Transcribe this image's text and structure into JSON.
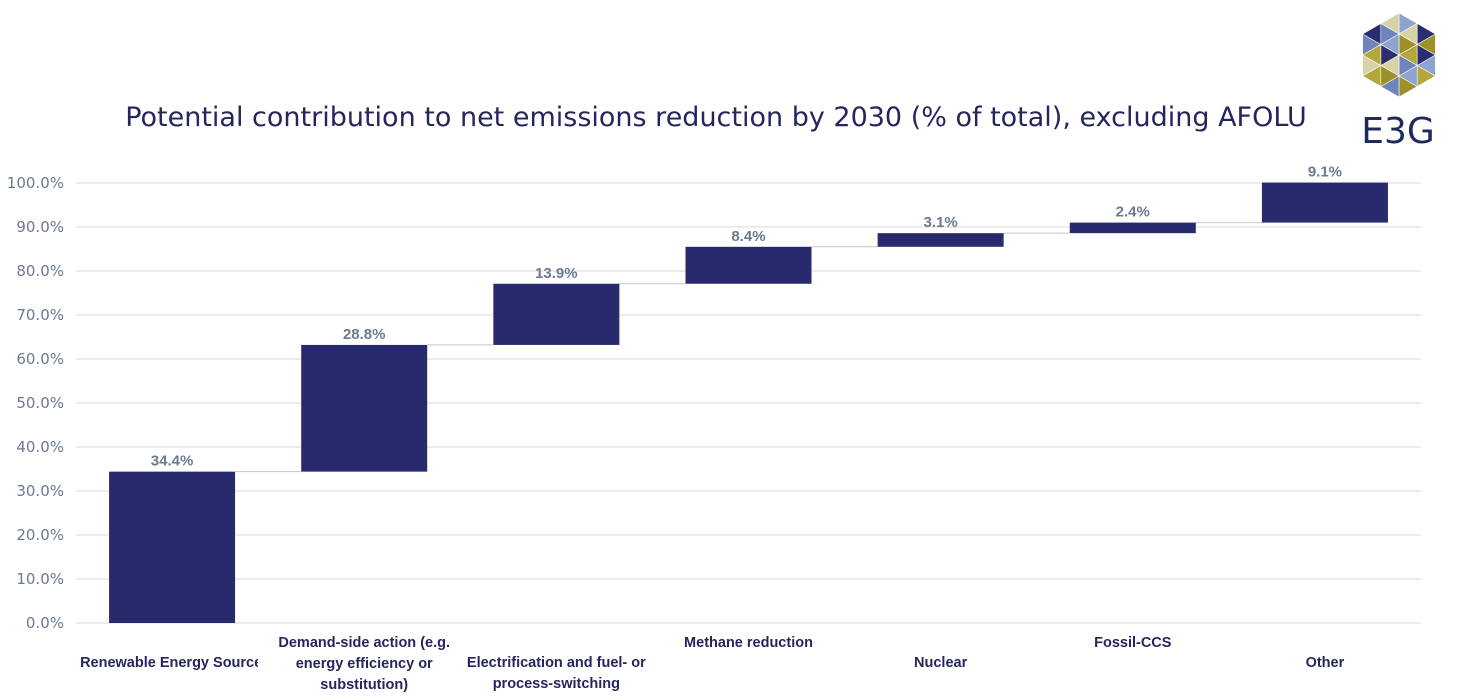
{
  "logo": {
    "text": "E3G"
  },
  "colors": {
    "bar": "#29296d",
    "grid": "#d9d9d9",
    "connector": "#c8c8c8"
  },
  "chart_data": {
    "type": "bar",
    "subtype": "waterfall",
    "title": "Potential contribution to net emissions reduction by 2030 (% of total), excluding AFOLU",
    "xlabel": "",
    "ylabel": "",
    "ylim": [
      0,
      100
    ],
    "ytick_step": 10,
    "ytick_labels": [
      "0.0%",
      "10.0%",
      "20.0%",
      "30.0%",
      "40.0%",
      "50.0%",
      "60.0%",
      "70.0%",
      "80.0%",
      "90.0%",
      "100.0%"
    ],
    "grid": true,
    "legend": "none",
    "categories": [
      "Renewable Energy Sources",
      "Demand-side action (e.g. energy efficiency or substitution)",
      "Electrification and fuel- or process-switching",
      "Methane reduction",
      "Nuclear",
      "Fossil-CCS",
      "Other"
    ],
    "values": [
      34.4,
      28.8,
      13.9,
      8.4,
      3.1,
      2.4,
      9.1
    ],
    "data_labels": [
      "34.4%",
      "28.8%",
      "13.9%",
      "8.4%",
      "3.1%",
      "2.4%",
      "9.1%"
    ]
  }
}
